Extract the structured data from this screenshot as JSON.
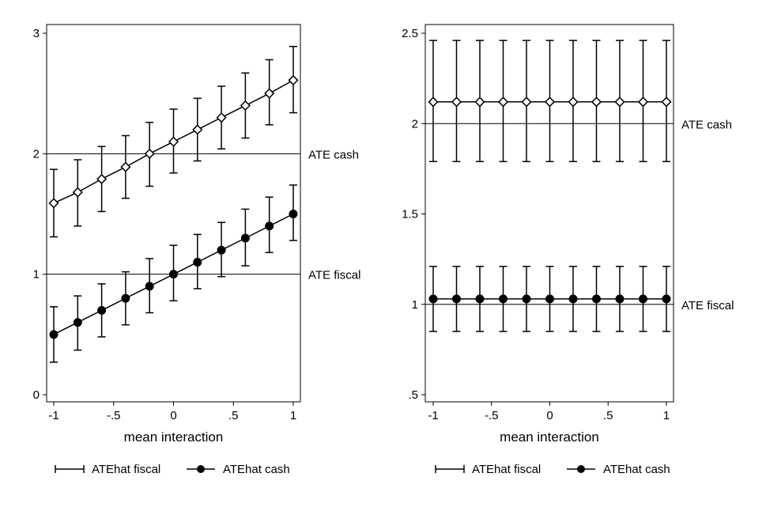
{
  "chart_data": [
    {
      "type": "scatter",
      "xlabel": "mean interaction",
      "xlim": [
        -1,
        1
      ],
      "ylim": [
        0,
        3
      ],
      "xticks": [
        -1,
        -0.5,
        0,
        0.5,
        1
      ],
      "xtick_labels": [
        "-1",
        "-.5",
        "0",
        ".5",
        "1"
      ],
      "yticks": [
        0,
        1,
        2,
        3
      ],
      "ytick_labels": [
        "0",
        "1",
        "2",
        "3"
      ],
      "grid": false,
      "legend_position": "bottom",
      "x": [
        -1,
        -0.8,
        -0.6,
        -0.4,
        -0.2,
        0,
        0.2,
        0.4,
        0.6,
        0.8,
        1
      ],
      "series": [
        {
          "name": "ATEhat fiscal",
          "marker": "filled-circle",
          "values": [
            0.5,
            0.6,
            0.7,
            0.8,
            0.9,
            1.0,
            1.1,
            1.2,
            1.3,
            1.4,
            1.5
          ],
          "ci_low": [
            0.27,
            0.37,
            0.48,
            0.58,
            0.68,
            0.78,
            0.88,
            0.98,
            1.07,
            1.18,
            1.28
          ],
          "ci_high": [
            0.73,
            0.82,
            0.92,
            1.02,
            1.13,
            1.24,
            1.33,
            1.43,
            1.54,
            1.64,
            1.74
          ]
        },
        {
          "name": "ATEhat cash",
          "marker": "hollow-diamond",
          "values": [
            1.59,
            1.68,
            1.79,
            1.89,
            2.0,
            2.1,
            2.2,
            2.3,
            2.4,
            2.5,
            2.61
          ],
          "ci_low": [
            1.31,
            1.4,
            1.52,
            1.63,
            1.73,
            1.84,
            1.94,
            2.04,
            2.13,
            2.24,
            2.34
          ],
          "ci_high": [
            1.87,
            1.95,
            2.06,
            2.15,
            2.26,
            2.37,
            2.46,
            2.56,
            2.67,
            2.78,
            2.89
          ]
        }
      ],
      "reference_lines": [
        {
          "value": 2,
          "label": "ATE cash"
        },
        {
          "value": 1,
          "label": "ATE fiscal"
        }
      ],
      "legend": [
        {
          "label": "ATEhat fiscal",
          "symbol": "capped-range"
        },
        {
          "label": "ATEhat cash",
          "symbol": "filled-circle"
        }
      ]
    },
    {
      "type": "scatter",
      "xlabel": "mean interaction",
      "xlim": [
        -1,
        1
      ],
      "ylim": [
        0.5,
        2.5
      ],
      "xticks": [
        -1,
        -0.5,
        0,
        0.5,
        1
      ],
      "xtick_labels": [
        "-1",
        "-.5",
        "0",
        ".5",
        "1"
      ],
      "yticks": [
        0.5,
        1,
        1.5,
        2,
        2.5
      ],
      "ytick_labels": [
        ".5",
        "1",
        "1.5",
        "2",
        "2.5"
      ],
      "grid": false,
      "legend_position": "bottom",
      "x": [
        -1,
        -0.8,
        -0.6,
        -0.4,
        -0.2,
        0,
        0.2,
        0.4,
        0.6,
        0.8,
        1
      ],
      "series": [
        {
          "name": "ATEhat fiscal",
          "marker": "filled-circle",
          "values": [
            1.03,
            1.03,
            1.03,
            1.03,
            1.03,
            1.03,
            1.03,
            1.03,
            1.03,
            1.03,
            1.03
          ],
          "ci_low": [
            0.85,
            0.85,
            0.85,
            0.85,
            0.85,
            0.85,
            0.85,
            0.85,
            0.85,
            0.85,
            0.85
          ],
          "ci_high": [
            1.21,
            1.21,
            1.21,
            1.21,
            1.21,
            1.21,
            1.21,
            1.21,
            1.21,
            1.21,
            1.21
          ]
        },
        {
          "name": "ATEhat cash",
          "marker": "hollow-diamond",
          "values": [
            2.12,
            2.12,
            2.12,
            2.12,
            2.12,
            2.12,
            2.12,
            2.12,
            2.12,
            2.12,
            2.12
          ],
          "ci_low": [
            1.79,
            1.79,
            1.79,
            1.79,
            1.79,
            1.79,
            1.79,
            1.79,
            1.79,
            1.79,
            1.79
          ],
          "ci_high": [
            2.46,
            2.46,
            2.46,
            2.46,
            2.46,
            2.46,
            2.46,
            2.46,
            2.46,
            2.46,
            2.46
          ]
        }
      ],
      "reference_lines": [
        {
          "value": 2,
          "label": "ATE cash"
        },
        {
          "value": 1,
          "label": "ATE fiscal"
        }
      ],
      "legend": [
        {
          "label": "ATEhat fiscal",
          "symbol": "capped-range"
        },
        {
          "label": "ATEhat cash",
          "symbol": "filled-circle"
        }
      ]
    }
  ]
}
